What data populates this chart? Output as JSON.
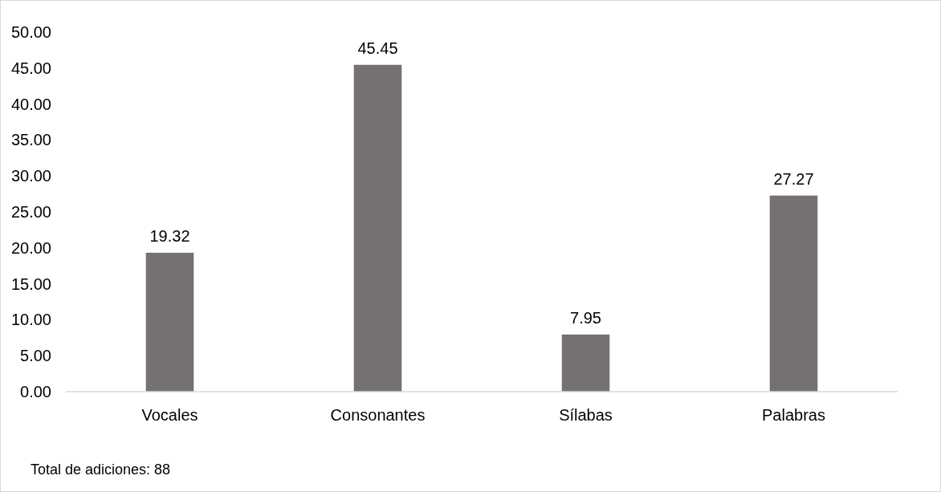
{
  "chart_data": {
    "type": "bar",
    "categories": [
      "Vocales",
      "Consonantes",
      "Sílabas",
      "Palabras"
    ],
    "values": [
      19.32,
      45.45,
      7.95,
      27.27
    ],
    "color": "#767171",
    "ylim": [
      0,
      50
    ],
    "yticks": [
      {
        "value": 0,
        "label": "0.00"
      },
      {
        "value": 5,
        "label": "5.00"
      },
      {
        "value": 10,
        "label": "10.00"
      },
      {
        "value": 15,
        "label": "15.00"
      },
      {
        "value": 20,
        "label": "20.00"
      },
      {
        "value": 25,
        "label": "25.00"
      },
      {
        "value": 30,
        "label": "30.00"
      },
      {
        "value": 35,
        "label": "35.00"
      },
      {
        "value": 40,
        "label": "40.00"
      },
      {
        "value": 45,
        "label": "45.00"
      },
      {
        "value": 50,
        "label": "50.00"
      }
    ],
    "data_labels": true,
    "grid": false,
    "annotations": [
      "Total de adiciones: 88"
    ]
  }
}
